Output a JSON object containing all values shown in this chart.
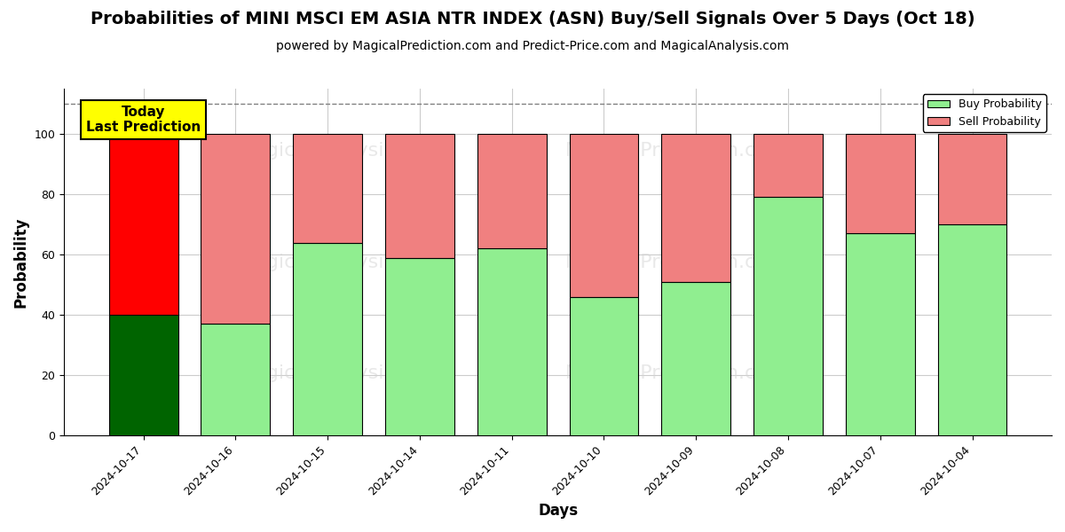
{
  "title": "Probabilities of MINI MSCI EM ASIA NTR INDEX (ASN) Buy/Sell Signals Over 5 Days (Oct 18)",
  "subtitle": "powered by MagicalPrediction.com and Predict-Price.com and MagicalAnalysis.com",
  "xlabel": "Days",
  "ylabel": "Probability",
  "categories": [
    "2024-10-17",
    "2024-10-16",
    "2024-10-15",
    "2024-10-14",
    "2024-10-11",
    "2024-10-10",
    "2024-10-09",
    "2024-10-08",
    "2024-10-07",
    "2024-10-04"
  ],
  "buy_values": [
    40,
    37,
    64,
    59,
    62,
    46,
    51,
    79,
    67,
    70
  ],
  "sell_values": [
    60,
    63,
    36,
    41,
    38,
    54,
    49,
    21,
    33,
    30
  ],
  "today_bar": "2024-10-17",
  "buy_color_today": "#006400",
  "sell_color_today": "#ff0000",
  "buy_color_normal": "#90EE90",
  "sell_color_normal": "#f08080",
  "bar_edge_color": "black",
  "bar_linewidth": 0.8,
  "ylim_max": 115,
  "yticks": [
    0,
    20,
    40,
    60,
    80,
    100
  ],
  "dashed_line_y": 110,
  "legend_buy_label": "Buy Probability",
  "legend_sell_label": "Sell Probability",
  "annotation_text": "Today\nLast Prediction",
  "annotation_fontsize": 11,
  "annotation_bg": "yellow",
  "background_color": "white",
  "grid_color": "#cccccc",
  "title_fontsize": 14,
  "subtitle_fontsize": 10,
  "axis_label_fontsize": 12,
  "tick_fontsize": 9,
  "bar_width": 0.75
}
